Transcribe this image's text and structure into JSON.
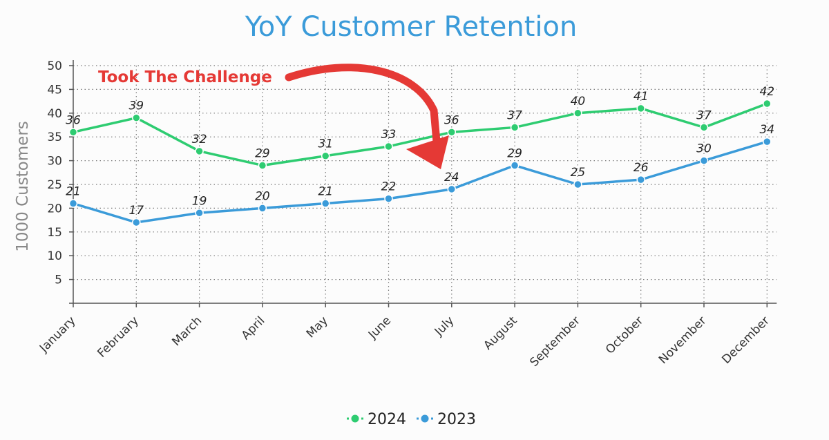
{
  "chart_data": {
    "type": "line",
    "title": "YoY Customer Retention",
    "xlabel": "",
    "ylabel": "1000 Customers",
    "categories": [
      "January",
      "February",
      "March",
      "April",
      "May",
      "June",
      "July",
      "August",
      "September",
      "October",
      "November",
      "December"
    ],
    "yticks": [
      5,
      10,
      15,
      20,
      25,
      30,
      35,
      40,
      45,
      50
    ],
    "ylim": [
      0,
      50
    ],
    "grid": true,
    "legend_position": "bottom",
    "series": [
      {
        "name": "2024",
        "color": "#2ecc71",
        "values": [
          36,
          39,
          32,
          29,
          31,
          33,
          36,
          37,
          40,
          41,
          37,
          42
        ]
      },
      {
        "name": "2023",
        "color": "#3b9bd9",
        "values": [
          21,
          17,
          19,
          20,
          21,
          22,
          24,
          29,
          25,
          26,
          30,
          34
        ]
      }
    ],
    "annotation": {
      "text": "Took The Challenge",
      "color": "#e53935"
    },
    "title_color": "#3b9bd9"
  }
}
